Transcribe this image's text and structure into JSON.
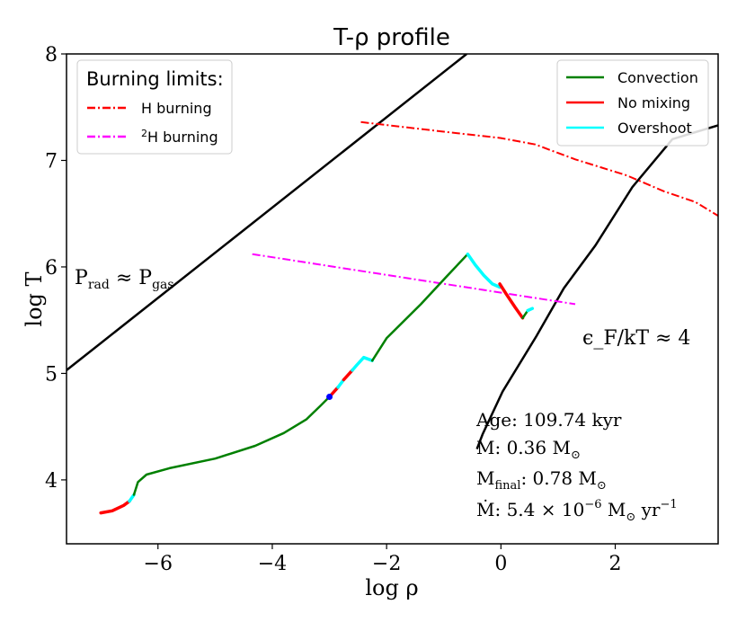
{
  "chart_data": {
    "type": "line",
    "title": "T-ρ profile",
    "xlabel": "log ρ",
    "ylabel": "log T",
    "xlim": [
      -7.6,
      3.8
    ],
    "ylim": [
      3.4,
      8.0
    ],
    "x_ticks": [
      -6,
      -4,
      -2,
      0,
      2
    ],
    "x_tick_labels": [
      "−6",
      "−4",
      "−2",
      "0",
      "2"
    ],
    "y_ticks": [
      4,
      5,
      6,
      7,
      8
    ],
    "y_tick_labels": [
      "4",
      "5",
      "6",
      "7",
      "8"
    ],
    "grid": false,
    "colors": {
      "convection": "#008000",
      "no_mixing": "#ff0000",
      "overshoot": "#00ffff",
      "h_burning": "#ff0000",
      "h2_burning": "#ff00ff",
      "boundary": "#000000",
      "marker": "#0000ff"
    },
    "boundary_lines": [
      {
        "name": "prad-pgas",
        "label_main": "P",
        "label_sub1": "rad",
        "label_approx": " ≈ P",
        "label_sub2": "gas",
        "points": [
          [
            -7.6,
            5.03
          ],
          [
            -0.6,
            8.0
          ]
        ]
      },
      {
        "name": "degeneracy",
        "label": "ϵ_F/kT ≈ 4",
        "points": [
          [
            -0.42,
            4.29
          ],
          [
            -0.32,
            4.43
          ],
          [
            0.03,
            4.83
          ],
          [
            0.62,
            5.35
          ],
          [
            1.1,
            5.8
          ],
          [
            1.65,
            6.2
          ],
          [
            2.3,
            6.75
          ],
          [
            3.0,
            7.2
          ],
          [
            3.8,
            7.33
          ]
        ]
      }
    ],
    "burning_limits": [
      {
        "name": "h-burning",
        "label": "H burning",
        "points": [
          [
            -2.45,
            7.36
          ],
          [
            -1.8,
            7.32
          ],
          [
            -1.0,
            7.27
          ],
          [
            0.0,
            7.21
          ],
          [
            0.6,
            7.15
          ],
          [
            1.3,
            7.01
          ],
          [
            2.2,
            6.86
          ],
          [
            2.85,
            6.71
          ],
          [
            3.4,
            6.61
          ],
          [
            3.8,
            6.48
          ]
        ]
      },
      {
        "name": "h2-burning",
        "label": "H burning",
        "superscript": "2",
        "points": [
          [
            -4.35,
            6.12
          ],
          [
            1.3,
            5.65
          ]
        ]
      }
    ],
    "profile_segments": [
      {
        "mixing": "no_mixing",
        "points": [
          [
            -7.0,
            3.69
          ],
          [
            -6.8,
            3.71
          ],
          [
            -6.6,
            3.76
          ],
          [
            -6.5,
            3.8
          ]
        ]
      },
      {
        "mixing": "overshoot",
        "points": [
          [
            -6.5,
            3.8
          ],
          [
            -6.42,
            3.86
          ]
        ]
      },
      {
        "mixing": "convection",
        "points": [
          [
            -6.42,
            3.86
          ],
          [
            -6.35,
            3.98
          ],
          [
            -6.2,
            4.05
          ],
          [
            -5.8,
            4.11
          ],
          [
            -5.0,
            4.2
          ],
          [
            -4.3,
            4.32
          ],
          [
            -3.8,
            4.44
          ],
          [
            -3.4,
            4.57
          ],
          [
            -3.15,
            4.7
          ],
          [
            -3.0,
            4.78
          ]
        ]
      },
      {
        "mixing": "no_mixing",
        "points": [
          [
            -3.0,
            4.78
          ],
          [
            -2.85,
            4.87
          ]
        ]
      },
      {
        "mixing": "overshoot",
        "points": [
          [
            -2.85,
            4.87
          ],
          [
            -2.75,
            4.94
          ]
        ]
      },
      {
        "mixing": "no_mixing",
        "points": [
          [
            -2.75,
            4.94
          ],
          [
            -2.6,
            5.03
          ]
        ]
      },
      {
        "mixing": "overshoot",
        "points": [
          [
            -2.6,
            5.03
          ],
          [
            -2.52,
            5.08
          ],
          [
            -2.4,
            5.15
          ],
          [
            -2.25,
            5.12
          ]
        ]
      },
      {
        "mixing": "convection",
        "points": [
          [
            -2.25,
            5.12
          ],
          [
            -2.0,
            5.33
          ],
          [
            -1.4,
            5.65
          ],
          [
            -0.95,
            5.91
          ],
          [
            -0.58,
            6.12
          ]
        ]
      },
      {
        "mixing": "overshoot",
        "points": [
          [
            -0.58,
            6.12
          ],
          [
            -0.45,
            6.02
          ],
          [
            -0.3,
            5.92
          ],
          [
            -0.15,
            5.84
          ],
          [
            -0.02,
            5.81
          ]
        ]
      },
      {
        "mixing": "no_mixing",
        "points": [
          [
            -0.02,
            5.84
          ],
          [
            0.1,
            5.74
          ],
          [
            0.25,
            5.62
          ],
          [
            0.38,
            5.52
          ]
        ]
      },
      {
        "mixing": "convection",
        "points": [
          [
            0.38,
            5.52
          ],
          [
            0.47,
            5.59
          ]
        ]
      },
      {
        "mixing": "overshoot",
        "points": [
          [
            0.47,
            5.59
          ],
          [
            0.55,
            5.61
          ]
        ]
      }
    ],
    "current_point": {
      "x": -3.0,
      "y": 4.78
    },
    "legend_burning": {
      "title": "Burning limits:",
      "placement": "top-left",
      "entries": [
        {
          "label": "H burning",
          "superscript": "",
          "style": "dash-dot",
          "color_key": "h_burning"
        },
        {
          "label": "H burning",
          "superscript": "2",
          "style": "dash-dot",
          "color_key": "h2_burning"
        }
      ]
    },
    "legend_mixing": {
      "placement": "top-right",
      "entries": [
        {
          "label": "Convection",
          "color_key": "convection"
        },
        {
          "label": "No mixing",
          "color_key": "no_mixing"
        },
        {
          "label": "Overshoot",
          "color_key": "overshoot"
        }
      ]
    },
    "annotations": {
      "age": "Age: 109.74 kyr",
      "mass_prefix": "M:  0.36 M",
      "mfinal_prefix": "M",
      "mfinal_sub": "final",
      "mfinal_value": ":  0.78 M",
      "mdot_prefix": "Ṁ:  5.4 × 10",
      "mdot_exp": "−6",
      "mdot_unit": " M",
      "mdot_suffix": " yr",
      "mdot_suffix_exp": "−1",
      "sun_symbol": "⊙"
    }
  }
}
